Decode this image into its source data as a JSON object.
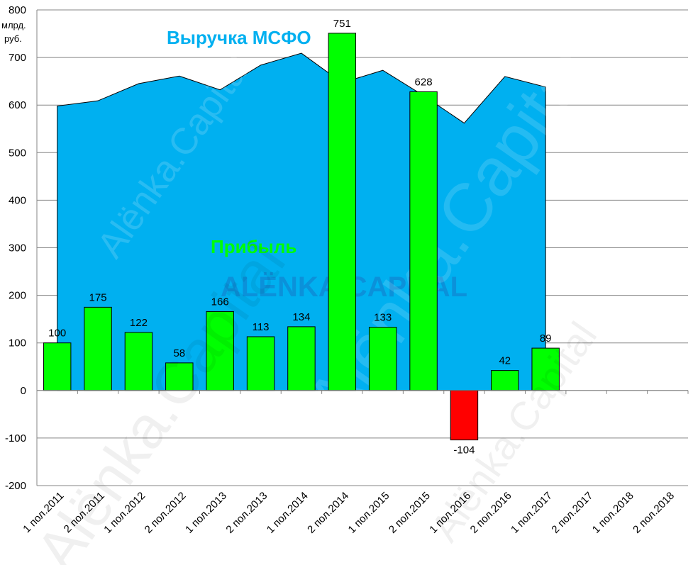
{
  "chart_data": {
    "type": "bar",
    "unit_label": [
      "млрд.",
      "руб."
    ],
    "yticks": [
      800,
      700,
      600,
      500,
      400,
      300,
      200,
      100,
      0,
      -100,
      -200
    ],
    "ylim": [
      -200,
      800
    ],
    "grid": true,
    "categories": [
      "1 пол.2011",
      "2 пол.2011",
      "1 пол.2012",
      "2 пол.2012",
      "1 пол.2013",
      "2 пол.2013",
      "1 пол.2014",
      "2 пол.2014",
      "1 пол.2015",
      "2 пол.2015",
      "1 пол.2016",
      "2 пол.2016",
      "1 пол.2017",
      "2 пол.2017",
      "1 пол.2018",
      "2 пол.2018"
    ],
    "series": [
      {
        "name": "Выручка МСФО",
        "kind": "area",
        "color": "#00B0F0",
        "values": [
          598,
          609,
          645,
          661,
          632,
          684,
          709,
          647,
          673,
          620,
          562,
          660,
          638,
          null,
          null,
          null
        ]
      },
      {
        "name": "Прибыль",
        "kind": "bar",
        "color": "#00FF00",
        "negative_color": "#FF0000",
        "values": [
          100,
          175,
          122,
          58,
          166,
          113,
          134,
          751,
          133,
          628,
          -104,
          42,
          89,
          null,
          null,
          null
        ]
      }
    ],
    "watermarks": [
      "Alёnka.Capital",
      "ALЁNKA.CAPITAL"
    ]
  }
}
